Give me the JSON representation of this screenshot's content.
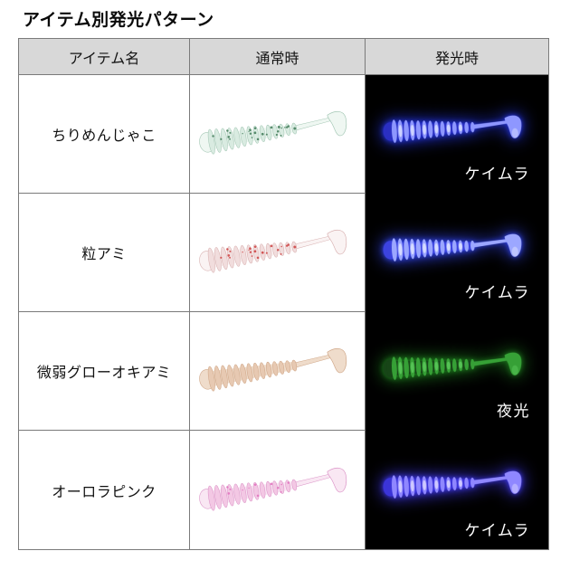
{
  "title": "アイテム別発光パターン",
  "colors": {
    "header_bg": "#d8d8d8",
    "border": "#7a7a7a",
    "glow_bg": "#000000",
    "label_text": "#ffffff"
  },
  "table": {
    "headers": [
      "アイテム名",
      "通常時",
      "発光時"
    ],
    "rows": [
      {
        "name": "ちりめんじゃこ",
        "normal": {
          "body": "#eff7f2",
          "rib": "#d9ebe1",
          "outline": "#a2c6b3",
          "speckle": "#3f7a57",
          "speckle_count": 26
        },
        "glow": {
          "label": "ケイムラ",
          "body": "#2a2fc2",
          "rib": "#8e97ff",
          "hot": "#d8ddff",
          "halo": "#2636e8"
        }
      },
      {
        "name": "粒アミ",
        "normal": {
          "body": "#faf3f3",
          "rib": "#f1dddd",
          "outline": "#d8b0b0",
          "speckle": "#cc4040",
          "speckle_count": 22
        },
        "glow": {
          "label": "ケイムラ",
          "body": "#3c43e0",
          "rib": "#9ca7ff",
          "hot": "#e0e4ff",
          "halo": "#3345f0"
        }
      },
      {
        "name": "微弱グローオキアミ",
        "normal": {
          "body": "#efdccb",
          "rib": "#e7c9b2",
          "outline": "#cfa687",
          "speckle": "#c89a78",
          "speckle_count": 0
        },
        "glow": {
          "label": "夜光",
          "body": "#174517",
          "rib": "#36a036",
          "hot": "#5ac85a",
          "halo": "#1d7a1d"
        }
      },
      {
        "name": "オーロラピンク",
        "normal": {
          "body": "#f9e7f3",
          "rib": "#f3c8e4",
          "outline": "#db93c7",
          "speckle": "#e070bd",
          "speckle_count": 12
        },
        "glow": {
          "label": "ケイムラ",
          "body": "#3b34d8",
          "rib": "#8f87ff",
          "hot": "#d9d5ff",
          "halo": "#4038f0"
        }
      }
    ]
  }
}
